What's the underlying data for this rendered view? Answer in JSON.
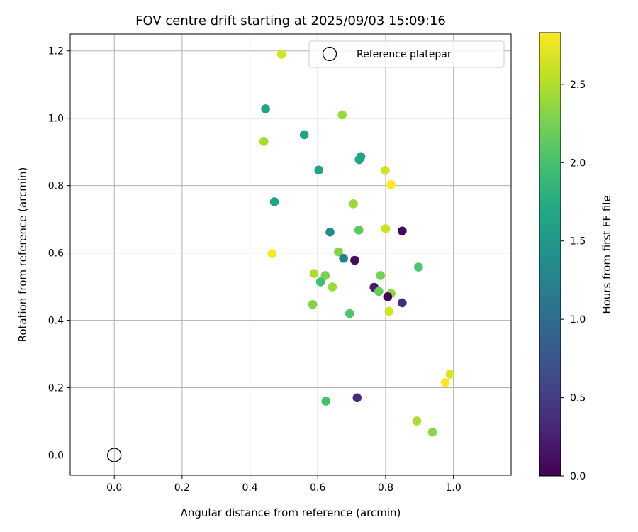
{
  "chart_data": {
    "type": "scatter",
    "title": "FOV centre drift starting at 2025/09/03 15:09:16",
    "xlabel": "Angular distance from reference (arcmin)",
    "ylabel": "Rotation from reference (arcmin)",
    "xlim": [
      -0.13,
      1.17
    ],
    "ylim": [
      -0.06,
      1.25
    ],
    "xticks": [
      0.0,
      0.2,
      0.4,
      0.6,
      0.8,
      1.0
    ],
    "xtick_labels": [
      "0.0",
      "0.2",
      "0.4",
      "0.6",
      "0.8",
      "1.0"
    ],
    "yticks": [
      0.0,
      0.2,
      0.4,
      0.6,
      0.8,
      1.0,
      1.2
    ],
    "ytick_labels": [
      "0.0",
      "0.2",
      "0.4",
      "0.6",
      "0.8",
      "1.0",
      "1.2"
    ],
    "grid": true,
    "legend": {
      "placement": "top-right",
      "label": "Reference platepar"
    },
    "reference_point": {
      "x": 0.0,
      "y": 0.0
    },
    "colorbar": {
      "label": "Hours from first FF file",
      "min": 0.0,
      "max": 2.83,
      "colormap": "viridis",
      "ticks": [
        0.0,
        0.5,
        1.0,
        1.5,
        2.0,
        2.5
      ],
      "tick_labels": [
        "0.0",
        "0.5",
        "1.0",
        "1.5",
        "2.0",
        "2.5"
      ]
    },
    "points": [
      {
        "x": 0.493,
        "y": 1.19,
        "hours": 2.65
      },
      {
        "x": 0.446,
        "y": 1.028,
        "hours": 1.62
      },
      {
        "x": 0.672,
        "y": 1.01,
        "hours": 2.4
      },
      {
        "x": 0.56,
        "y": 0.951,
        "hours": 1.63
      },
      {
        "x": 0.441,
        "y": 0.931,
        "hours": 2.45
      },
      {
        "x": 0.727,
        "y": 0.886,
        "hours": 1.62
      },
      {
        "x": 0.722,
        "y": 0.877,
        "hours": 1.64
      },
      {
        "x": 0.603,
        "y": 0.846,
        "hours": 1.62
      },
      {
        "x": 0.799,
        "y": 0.845,
        "hours": 2.62
      },
      {
        "x": 0.816,
        "y": 0.803,
        "hours": 2.82
      },
      {
        "x": 0.472,
        "y": 0.752,
        "hours": 1.64
      },
      {
        "x": 0.705,
        "y": 0.746,
        "hours": 2.4
      },
      {
        "x": 0.8,
        "y": 0.672,
        "hours": 2.62
      },
      {
        "x": 0.849,
        "y": 0.665,
        "hours": 0.02
      },
      {
        "x": 0.721,
        "y": 0.668,
        "hours": 2.1
      },
      {
        "x": 0.636,
        "y": 0.662,
        "hours": 1.35
      },
      {
        "x": 0.661,
        "y": 0.603,
        "hours": 2.3
      },
      {
        "x": 0.465,
        "y": 0.598,
        "hours": 2.82
      },
      {
        "x": 0.709,
        "y": 0.578,
        "hours": 0.08
      },
      {
        "x": 0.676,
        "y": 0.584,
        "hours": 1.2
      },
      {
        "x": 0.897,
        "y": 0.558,
        "hours": 2.05
      },
      {
        "x": 0.589,
        "y": 0.539,
        "hours": 2.48
      },
      {
        "x": 0.622,
        "y": 0.533,
        "hours": 2.25
      },
      {
        "x": 0.785,
        "y": 0.533,
        "hours": 2.25
      },
      {
        "x": 0.608,
        "y": 0.514,
        "hours": 1.98
      },
      {
        "x": 0.643,
        "y": 0.499,
        "hours": 2.4
      },
      {
        "x": 0.766,
        "y": 0.498,
        "hours": 0.22
      },
      {
        "x": 0.78,
        "y": 0.486,
        "hours": 2.15
      },
      {
        "x": 0.816,
        "y": 0.48,
        "hours": 2.35
      },
      {
        "x": 0.806,
        "y": 0.47,
        "hours": 0.02
      },
      {
        "x": 0.849,
        "y": 0.452,
        "hours": 0.35
      },
      {
        "x": 0.585,
        "y": 0.447,
        "hours": 2.3
      },
      {
        "x": 0.81,
        "y": 0.427,
        "hours": 2.65
      },
      {
        "x": 0.694,
        "y": 0.42,
        "hours": 2.05
      },
      {
        "x": 0.99,
        "y": 0.24,
        "hours": 2.68
      },
      {
        "x": 0.976,
        "y": 0.215,
        "hours": 2.82
      },
      {
        "x": 0.716,
        "y": 0.17,
        "hours": 0.35
      },
      {
        "x": 0.624,
        "y": 0.16,
        "hours": 2.0
      },
      {
        "x": 0.892,
        "y": 0.101,
        "hours": 2.48
      },
      {
        "x": 0.938,
        "y": 0.068,
        "hours": 2.35
      }
    ]
  }
}
